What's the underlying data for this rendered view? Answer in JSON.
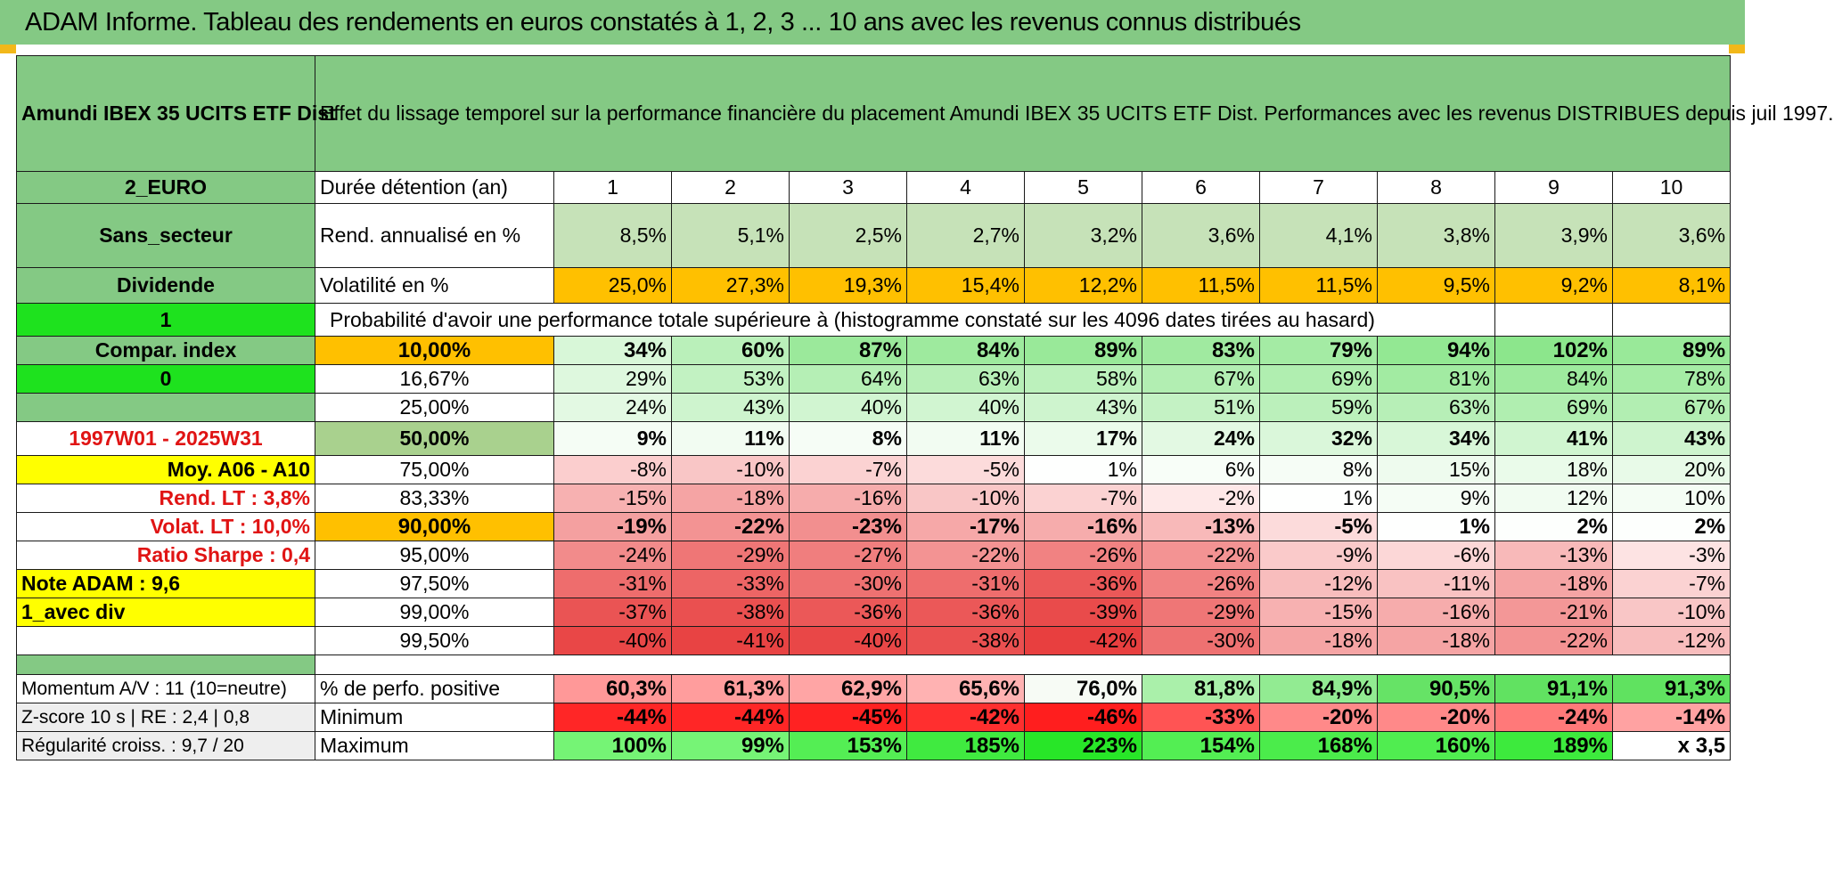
{
  "title": "ADAM Informe. Tableau des rendements en euros constatés à 1, 2, 3 ... 10 ans avec les revenus connus distribués",
  "fund_name": "Amundi IBEX 35 UCITS ETF Dist",
  "effect_text": "Effet du lissage temporel sur la performance financière du placement Amundi IBEX 35 UCITS ETF Dist. Performances avec les revenus DISTRIBUES depuis juil 1997.",
  "left_labels": {
    "currency": "2_EURO",
    "sector": "Sans_secteur",
    "dividend": "Dividende",
    "one": "1",
    "compar": "Compar. index",
    "zero": "0",
    "period": "1997W01 - 2025W31",
    "moy": "Moy. A06 - A10",
    "rend_lt": "Rend. LT :    3,8%",
    "volat_lt": "Volat. LT :    10,0%",
    "sharpe": "Ratio Sharpe :    0,4",
    "note": "Note ADAM : 9,6",
    "avec_div": "1_avec div",
    "momentum": "Momentum A/V : 11 (10=neutre)",
    "zscore": "Z-score 10 s | RE : 2,4 | 0,8",
    "regularite": "Régularité croiss. : 9,7 / 20"
  },
  "duration_label": "Durée détention (an)",
  "years": [
    "1",
    "2",
    "3",
    "4",
    "5",
    "6",
    "7",
    "8",
    "9",
    "10"
  ],
  "rend_label": "Rend. annualisé en %",
  "rend": [
    "8,5%",
    "5,1%",
    "2,5%",
    "2,7%",
    "3,2%",
    "3,6%",
    "4,1%",
    "3,8%",
    "3,9%",
    "3,6%"
  ],
  "vol_label": "Volatilité en %",
  "vol": [
    "25,0%",
    "27,3%",
    "19,3%",
    "15,4%",
    "12,2%",
    "11,5%",
    "11,5%",
    "9,5%",
    "9,2%",
    "8,1%"
  ],
  "prob_title": "Probabilité d'avoir une performance totale supérieure à (histogramme constaté sur les 4096 dates tirées au hasard)",
  "prob_rows": [
    {
      "p": "10,00%",
      "vals": [
        "34%",
        "60%",
        "87%",
        "84%",
        "89%",
        "83%",
        "79%",
        "94%",
        "102%",
        "89%"
      ]
    },
    {
      "p": "16,67%",
      "vals": [
        "29%",
        "53%",
        "64%",
        "63%",
        "58%",
        "67%",
        "69%",
        "81%",
        "84%",
        "78%"
      ]
    },
    {
      "p": "25,00%",
      "vals": [
        "24%",
        "43%",
        "40%",
        "40%",
        "43%",
        "51%",
        "59%",
        "63%",
        "69%",
        "67%"
      ]
    },
    {
      "p": "50,00%",
      "vals": [
        "9%",
        "11%",
        "8%",
        "11%",
        "17%",
        "24%",
        "32%",
        "34%",
        "41%",
        "43%"
      ]
    },
    {
      "p": "75,00%",
      "vals": [
        "-8%",
        "-10%",
        "-7%",
        "-5%",
        "1%",
        "6%",
        "8%",
        "15%",
        "18%",
        "20%"
      ]
    },
    {
      "p": "83,33%",
      "vals": [
        "-15%",
        "-18%",
        "-16%",
        "-10%",
        "-7%",
        "-2%",
        "1%",
        "9%",
        "12%",
        "10%"
      ]
    },
    {
      "p": "90,00%",
      "vals": [
        "-19%",
        "-22%",
        "-23%",
        "-17%",
        "-16%",
        "-13%",
        "-5%",
        "1%",
        "2%",
        "2%"
      ]
    },
    {
      "p": "95,00%",
      "vals": [
        "-24%",
        "-29%",
        "-27%",
        "-22%",
        "-26%",
        "-22%",
        "-9%",
        "-6%",
        "-13%",
        "-3%"
      ]
    },
    {
      "p": "97,50%",
      "vals": [
        "-31%",
        "-33%",
        "-30%",
        "-31%",
        "-36%",
        "-26%",
        "-12%",
        "-11%",
        "-18%",
        "-7%"
      ]
    },
    {
      "p": "99,00%",
      "vals": [
        "-37%",
        "-38%",
        "-36%",
        "-36%",
        "-39%",
        "-29%",
        "-15%",
        "-16%",
        "-21%",
        "-10%"
      ]
    },
    {
      "p": "99,50%",
      "vals": [
        "-40%",
        "-41%",
        "-40%",
        "-38%",
        "-42%",
        "-30%",
        "-18%",
        "-18%",
        "-22%",
        "-12%"
      ]
    }
  ],
  "pos_label": "% de perfo. positive",
  "pos": [
    "60,3%",
    "61,3%",
    "62,9%",
    "65,6%",
    "76,0%",
    "81,8%",
    "84,9%",
    "90,5%",
    "91,1%",
    "91,3%"
  ],
  "min_label": "Minimum",
  "min": [
    "-44%",
    "-44%",
    "-45%",
    "-42%",
    "-46%",
    "-33%",
    "-20%",
    "-20%",
    "-24%",
    "-14%"
  ],
  "max_label": "Maximum",
  "max": [
    "100%",
    "99%",
    "153%",
    "185%",
    "223%",
    "154%",
    "168%",
    "160%",
    "189%",
    "x 3,5"
  ],
  "colors": {
    "header_green": "#84c984",
    "bright_green": "#1ee21e",
    "highlight_yellow": "#ffff00",
    "volatility_orange": "#ffc000",
    "alert_red": "#e01414"
  }
}
